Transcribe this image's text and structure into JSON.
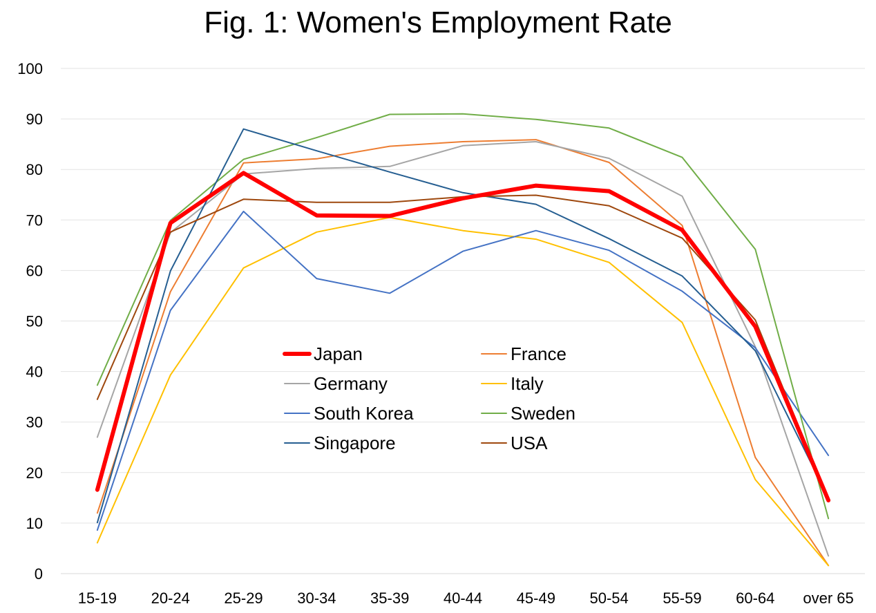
{
  "chart_data": {
    "type": "line",
    "title": "Fig. 1: Women's Employment Rate",
    "xlabel": "",
    "ylabel": "",
    "categories": [
      "15-19",
      "20-24",
      "25-29",
      "30-34",
      "35-39",
      "40-44",
      "45-49",
      "50-54",
      "55-59",
      "60-64",
      "over 65"
    ],
    "ylim": [
      0,
      100
    ],
    "yticks": [
      0,
      10,
      20,
      30,
      40,
      50,
      60,
      70,
      80,
      90,
      100
    ],
    "grid": true,
    "legend_position": "center",
    "series": [
      {
        "name": "Japan",
        "color": "#FF0000",
        "emphasis": true,
        "values": [
          16.6,
          69.4,
          79.3,
          70.9,
          70.8,
          74.3,
          76.8,
          75.7,
          68.0,
          48.9,
          14.5
        ]
      },
      {
        "name": "France",
        "color": "#ED7D31",
        "values": [
          12.0,
          55.8,
          81.3,
          82.1,
          84.6,
          85.5,
          85.9,
          81.4,
          68.9,
          23.0,
          1.6
        ]
      },
      {
        "name": "Germany",
        "color": "#A5A5A5",
        "values": [
          27.0,
          67.5,
          79.1,
          80.2,
          80.6,
          84.7,
          85.5,
          82.2,
          74.7,
          44.9,
          3.5
        ]
      },
      {
        "name": "Italy",
        "color": "#FFC000",
        "values": [
          6.1,
          39.3,
          60.5,
          67.6,
          70.5,
          67.9,
          66.2,
          61.6,
          49.7,
          18.6,
          1.6
        ]
      },
      {
        "name": "South Korea",
        "color": "#4472C4",
        "values": [
          8.6,
          52.1,
          71.7,
          58.4,
          55.5,
          63.8,
          67.9,
          64.0,
          55.9,
          44.7,
          23.4
        ]
      },
      {
        "name": "Sweden",
        "color": "#70AD47",
        "values": [
          37.3,
          69.9,
          82.0,
          86.3,
          90.9,
          91.0,
          89.9,
          88.2,
          82.4,
          64.2,
          10.9
        ]
      },
      {
        "name": "Singapore",
        "color": "#255E91",
        "values": [
          10.1,
          59.9,
          88.0,
          83.7,
          79.5,
          75.4,
          73.1,
          66.3,
          58.9,
          44.1,
          15.0
        ]
      },
      {
        "name": "USA",
        "color": "#9E480E",
        "values": [
          34.5,
          67.6,
          74.1,
          73.5,
          73.5,
          74.6,
          74.9,
          72.8,
          66.4,
          50.2,
          14.7
        ]
      }
    ]
  }
}
